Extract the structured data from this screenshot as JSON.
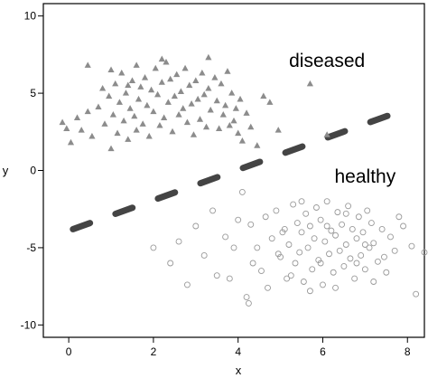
{
  "chart_data": {
    "type": "scatter",
    "title": "",
    "xlabel": "x",
    "ylabel": "y",
    "xlim": [
      -0.6,
      8.4
    ],
    "ylim": [
      -10.8,
      10.8
    ],
    "xticks": [
      0,
      2,
      4,
      6,
      8
    ],
    "yticks": [
      10,
      5,
      0,
      -5,
      -10
    ],
    "grid": false,
    "annotations": [
      {
        "text": "diseased",
        "x": 6.1,
        "y": 6.7
      },
      {
        "text": "healthy",
        "x": 7.0,
        "y": -0.8
      }
    ],
    "boundary": {
      "style": "dashed",
      "x": [
        0.1,
        7.8
      ],
      "y": [
        -3.8,
        3.8
      ]
    },
    "series": [
      {
        "marker": "triangle",
        "color": "#8c8c8c",
        "points": [
          [
            -0.15,
            3.1
          ],
          [
            -0.05,
            2.7
          ],
          [
            0.05,
            1.8
          ],
          [
            0.2,
            3.4
          ],
          [
            0.3,
            2.6
          ],
          [
            0.45,
            3.8
          ],
          [
            0.55,
            2.2
          ],
          [
            0.7,
            4.1
          ],
          [
            0.8,
            5.3
          ],
          [
            0.85,
            3.0
          ],
          [
            0.95,
            4.8
          ],
          [
            1.0,
            1.4
          ],
          [
            1.05,
            3.6
          ],
          [
            1.1,
            5.6
          ],
          [
            1.15,
            2.4
          ],
          [
            1.2,
            4.4
          ],
          [
            1.25,
            6.3
          ],
          [
            1.3,
            3.2
          ],
          [
            1.35,
            5.0
          ],
          [
            1.4,
            2.0
          ],
          [
            1.45,
            4.0
          ],
          [
            1.5,
            5.8
          ],
          [
            1.55,
            3.5
          ],
          [
            1.6,
            6.8
          ],
          [
            1.6,
            2.6
          ],
          [
            1.65,
            4.6
          ],
          [
            1.7,
            5.4
          ],
          [
            1.75,
            3.0
          ],
          [
            1.8,
            6.0
          ],
          [
            1.85,
            4.2
          ],
          [
            1.9,
            2.2
          ],
          [
            1.95,
            5.2
          ],
          [
            2.0,
            3.8
          ],
          [
            2.05,
            6.6
          ],
          [
            2.1,
            4.9
          ],
          [
            2.15,
            2.9
          ],
          [
            2.2,
            5.7
          ],
          [
            2.25,
            3.4
          ],
          [
            2.3,
            7.0
          ],
          [
            2.35,
            4.4
          ],
          [
            2.4,
            5.9
          ],
          [
            2.45,
            2.5
          ],
          [
            2.5,
            4.8
          ],
          [
            2.55,
            6.2
          ],
          [
            2.6,
            3.6
          ],
          [
            2.65,
            5.1
          ],
          [
            2.7,
            4.0
          ],
          [
            2.75,
            6.6
          ],
          [
            2.8,
            3.1
          ],
          [
            2.85,
            5.5
          ],
          [
            2.9,
            4.3
          ],
          [
            2.95,
            2.3
          ],
          [
            3.0,
            5.8
          ],
          [
            3.05,
            4.6
          ],
          [
            3.1,
            3.3
          ],
          [
            3.15,
            6.3
          ],
          [
            3.2,
            4.9
          ],
          [
            3.25,
            2.8
          ],
          [
            3.3,
            5.3
          ],
          [
            3.35,
            3.9
          ],
          [
            3.45,
            6.0
          ],
          [
            3.5,
            4.5
          ],
          [
            3.55,
            2.7
          ],
          [
            3.6,
            5.6
          ],
          [
            3.65,
            3.6
          ],
          [
            3.7,
            4.2
          ],
          [
            3.75,
            6.4
          ],
          [
            3.8,
            2.9
          ],
          [
            3.85,
            5.0
          ],
          [
            3.9,
            3.2
          ],
          [
            3.95,
            4.0
          ],
          [
            4.0,
            2.4
          ],
          [
            4.05,
            4.6
          ],
          [
            4.1,
            1.9
          ],
          [
            4.2,
            3.7
          ],
          [
            4.3,
            2.8
          ],
          [
            4.45,
            1.6
          ],
          [
            4.6,
            4.8
          ],
          [
            4.75,
            4.4
          ],
          [
            4.95,
            2.6
          ],
          [
            5.7,
            5.6
          ],
          [
            6.1,
            2.3
          ],
          [
            1.0,
            6.5
          ],
          [
            1.4,
            5.5
          ],
          [
            2.2,
            7.2
          ],
          [
            3.3,
            7.3
          ],
          [
            0.45,
            6.8
          ]
        ]
      },
      {
        "marker": "circle",
        "color": "#9a9a9a",
        "points": [
          [
            4.1,
            -1.4
          ],
          [
            4.3,
            -3.5
          ],
          [
            4.45,
            -5.0
          ],
          [
            4.55,
            -6.5
          ],
          [
            4.65,
            -3.0
          ],
          [
            4.8,
            -4.4
          ],
          [
            4.9,
            -2.6
          ],
          [
            5.0,
            -5.6
          ],
          [
            5.1,
            -3.8
          ],
          [
            5.15,
            -7.0
          ],
          [
            5.2,
            -4.8
          ],
          [
            5.3,
            -2.2
          ],
          [
            5.35,
            -6.0
          ],
          [
            5.4,
            -3.4
          ],
          [
            5.45,
            -5.3
          ],
          [
            5.5,
            -4.0
          ],
          [
            5.55,
            -7.2
          ],
          [
            5.6,
            -2.8
          ],
          [
            5.65,
            -5.0
          ],
          [
            5.7,
            -3.6
          ],
          [
            5.75,
            -6.4
          ],
          [
            5.8,
            -4.4
          ],
          [
            5.85,
            -2.4
          ],
          [
            5.9,
            -5.8
          ],
          [
            5.95,
            -3.2
          ],
          [
            6.0,
            -7.4
          ],
          [
            6.05,
            -4.6
          ],
          [
            6.1,
            -2.0
          ],
          [
            6.15,
            -5.4
          ],
          [
            6.2,
            -3.9
          ],
          [
            6.25,
            -6.6
          ],
          [
            6.3,
            -4.2
          ],
          [
            6.35,
            -2.7
          ],
          [
            6.4,
            -5.2
          ],
          [
            6.45,
            -3.5
          ],
          [
            6.5,
            -6.2
          ],
          [
            6.55,
            -4.8
          ],
          [
            6.6,
            -2.3
          ],
          [
            6.65,
            -5.7
          ],
          [
            6.7,
            -3.8
          ],
          [
            6.75,
            -7.0
          ],
          [
            6.8,
            -4.4
          ],
          [
            6.85,
            -3.0
          ],
          [
            6.9,
            -5.5
          ],
          [
            6.95,
            -4.0
          ],
          [
            7.0,
            -6.4
          ],
          [
            7.05,
            -2.6
          ],
          [
            7.1,
            -5.0
          ],
          [
            7.15,
            -3.4
          ],
          [
            7.2,
            -4.7
          ],
          [
            7.3,
            -5.9
          ],
          [
            7.4,
            -3.8
          ],
          [
            7.5,
            -6.6
          ],
          [
            7.6,
            -4.3
          ],
          [
            7.7,
            -5.2
          ],
          [
            7.9,
            -3.6
          ],
          [
            8.1,
            -4.9
          ],
          [
            8.2,
            -8.0
          ],
          [
            8.4,
            -5.3
          ],
          [
            8.6,
            -2.9
          ],
          [
            2.0,
            -5.0
          ],
          [
            2.4,
            -6.0
          ],
          [
            2.6,
            -4.6
          ],
          [
            2.8,
            -7.4
          ],
          [
            3.0,
            -3.6
          ],
          [
            3.2,
            -5.5
          ],
          [
            3.4,
            -2.6
          ],
          [
            3.5,
            -6.8
          ],
          [
            3.7,
            -4.3
          ],
          [
            3.8,
            -7.0
          ],
          [
            3.9,
            -5.0
          ],
          [
            4.0,
            -3.2
          ],
          [
            4.2,
            -8.2
          ],
          [
            4.25,
            -8.6
          ],
          [
            4.35,
            -6.0
          ],
          [
            4.7,
            -7.6
          ],
          [
            4.95,
            -5.4
          ],
          [
            5.05,
            -4.0
          ],
          [
            5.25,
            -6.8
          ],
          [
            5.5,
            -2.0
          ],
          [
            5.7,
            -7.8
          ],
          [
            5.95,
            -6.0
          ],
          [
            6.1,
            -3.6
          ],
          [
            6.3,
            -7.6
          ],
          [
            6.55,
            -2.8
          ],
          [
            6.8,
            -6.0
          ],
          [
            7.0,
            -4.8
          ],
          [
            7.2,
            -7.2
          ],
          [
            7.45,
            -5.6
          ],
          [
            7.8,
            -3.0
          ]
        ]
      }
    ]
  }
}
